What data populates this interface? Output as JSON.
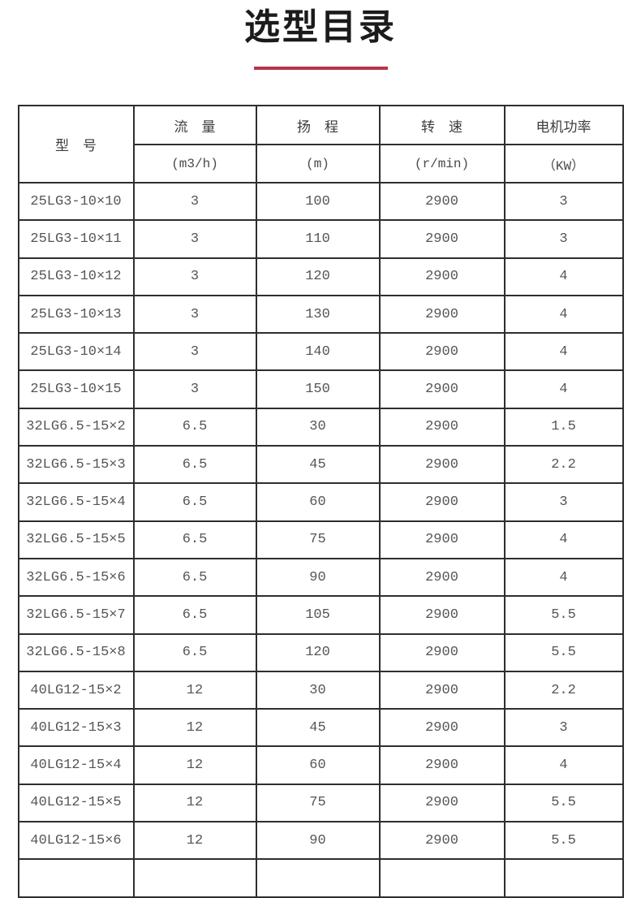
{
  "page": {
    "title": "选型目录"
  },
  "accent_color": "#b8354a",
  "table": {
    "header": {
      "model_label": "型　号",
      "columns": [
        {
          "label": "流　量",
          "unit": "(m3/h)"
        },
        {
          "label": "扬　程",
          "unit": "(m)"
        },
        {
          "label": "转　速",
          "unit": "(r/min)"
        },
        {
          "label": "电机功率",
          "unit": "（KW）"
        }
      ]
    },
    "rows": [
      [
        "25LG3-10×10",
        "3",
        "100",
        "2900",
        "3"
      ],
      [
        "25LG3-10×11",
        "3",
        "110",
        "2900",
        "3"
      ],
      [
        "25LG3-10×12",
        "3",
        "120",
        "2900",
        "4"
      ],
      [
        "25LG3-10×13",
        "3",
        "130",
        "2900",
        "4"
      ],
      [
        "25LG3-10×14",
        "3",
        "140",
        "2900",
        "4"
      ],
      [
        "25LG3-10×15",
        "3",
        "150",
        "2900",
        "4"
      ],
      [
        "32LG6.5-15×2",
        "6.5",
        "30",
        "2900",
        "1.5"
      ],
      [
        "32LG6.5-15×3",
        "6.5",
        "45",
        "2900",
        "2.2"
      ],
      [
        "32LG6.5-15×4",
        "6.5",
        "60",
        "2900",
        "3"
      ],
      [
        "32LG6.5-15×5",
        "6.5",
        "75",
        "2900",
        "4"
      ],
      [
        "32LG6.5-15×6",
        "6.5",
        "90",
        "2900",
        "4"
      ],
      [
        "32LG6.5-15×7",
        "6.5",
        "105",
        "2900",
        "5.5"
      ],
      [
        "32LG6.5-15×8",
        "6.5",
        "120",
        "2900",
        "5.5"
      ],
      [
        "40LG12-15×2",
        "12",
        "30",
        "2900",
        "2.2"
      ],
      [
        "40LG12-15×3",
        "12",
        "45",
        "2900",
        "3"
      ],
      [
        "40LG12-15×4",
        "12",
        "60",
        "2900",
        "4"
      ],
      [
        "40LG12-15×5",
        "12",
        "75",
        "2900",
        "5.5"
      ],
      [
        "40LG12-15×6",
        "12",
        "90",
        "2900",
        "5.5"
      ]
    ]
  }
}
